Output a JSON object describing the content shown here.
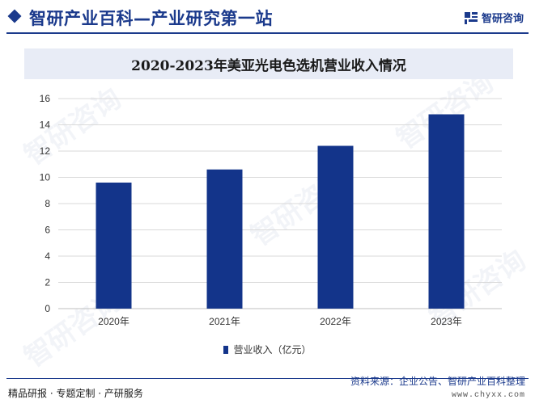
{
  "header": {
    "title": "智研产业百科—产业研究第一站",
    "brand": "智研咨询"
  },
  "chart_data": {
    "type": "bar",
    "title": "2020-2023年美亚光电色选机营业收入情况",
    "categories": [
      "2020年",
      "2021年",
      "2022年",
      "2023年"
    ],
    "series": [
      {
        "name": "营业收入（亿元）",
        "values": [
          9.6,
          10.6,
          12.4,
          14.8
        ]
      }
    ],
    "ylim": [
      0,
      16
    ],
    "yticks": [
      0,
      2,
      4,
      6,
      8,
      10,
      12,
      14,
      16
    ],
    "xlabel": "",
    "ylabel": "",
    "grid": true,
    "legend": "bottom",
    "bar_color": "#13348a"
  },
  "footer": {
    "left": "精品研报 · 专题定制 · 产研服务",
    "source": "资料来源：企业公告、智研产业百科整理",
    "site": "www.chyxx.com"
  },
  "watermark_text": "智研咨询"
}
